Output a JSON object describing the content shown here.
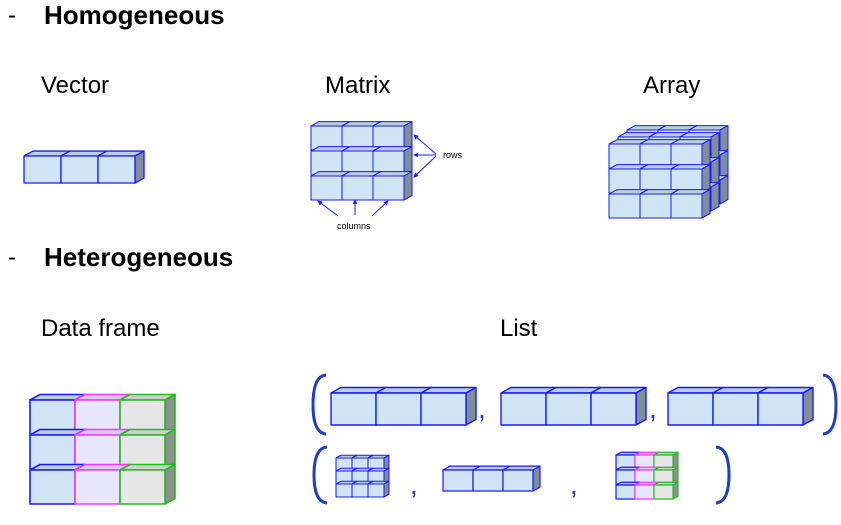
{
  "sections": [
    {
      "dash": "-",
      "title": "Homogeneous"
    },
    {
      "dash": "-",
      "title": "Heterogeneous"
    }
  ],
  "labels": {
    "vector": "Vector",
    "matrix": "Matrix",
    "array": "Array",
    "data_frame": "Data frame",
    "list": "List"
  },
  "annotations": {
    "rows": "rows",
    "columns": "columns"
  },
  "list_separators": [
    ",",
    ",",
    ",",
    ","
  ],
  "colors": {
    "blue_fill": "#cfe5f5",
    "blue_edge": "#1a1aff",
    "magenta_edge": "#ff33ff",
    "lavender_fill": "#e6e6ff",
    "green_edge": "#22bb22",
    "gray_fill": "#e6e6e6",
    "bracket": "#1f3fbf"
  }
}
